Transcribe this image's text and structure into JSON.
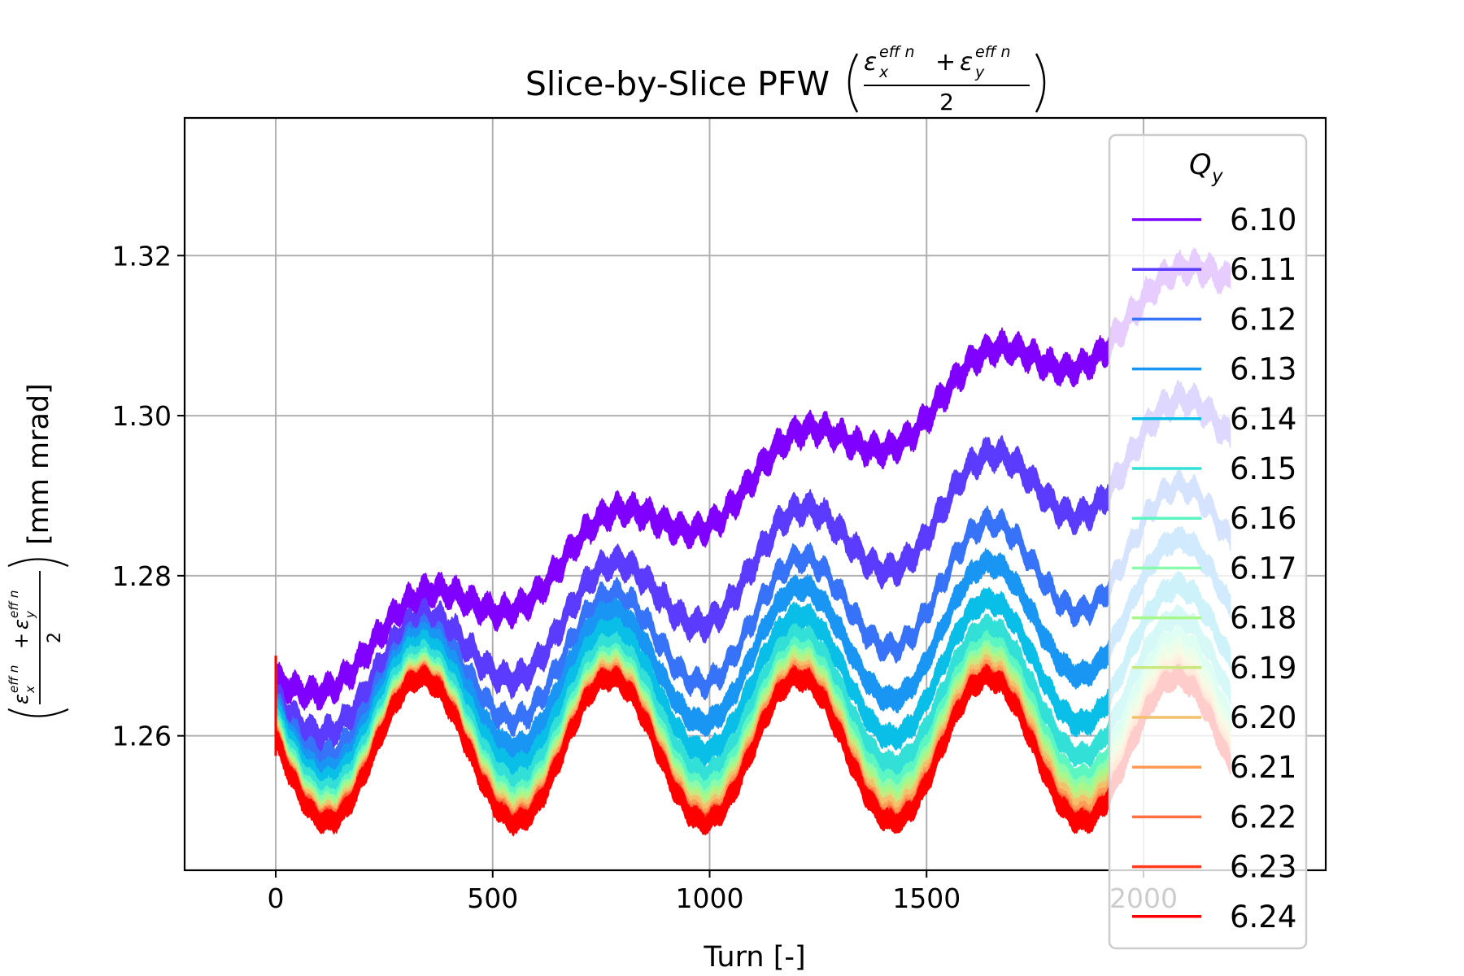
{
  "chart_data": {
    "type": "line",
    "title": "Slice-by-Slice PFW",
    "title_formula": {
      "numerator_x": "ε",
      "sub_x": "x",
      "sup_x": "eff n",
      "plus": "+",
      "numerator_y": "ε",
      "sub_y": "y",
      "sup_y": "eff n",
      "denominator": "2"
    },
    "xlabel": "Turn [-]",
    "ylabel_unit": "[mm mrad]",
    "xlim": [
      -210,
      2420
    ],
    "ylim": [
      1.2432,
      1.3372
    ],
    "x_ticks": [
      0,
      500,
      1000,
      1500,
      2000
    ],
    "x_tick_labels": [
      "0",
      "500",
      "1000",
      "1500",
      "2000"
    ],
    "y_ticks": [
      1.26,
      1.28,
      1.3,
      1.32
    ],
    "y_tick_labels": [
      "1.26",
      "1.28",
      "1.30",
      "1.32"
    ],
    "grid": true,
    "legend": {
      "title": "Q",
      "title_sub": "y",
      "placement": "right"
    },
    "x_end": 2200,
    "period": 435,
    "series": [
      {
        "name": "6.10",
        "color": "#8000ff",
        "start": 1.2665,
        "trend_per_period": 0.0101,
        "amplitude": 0.0035,
        "band": 0.0022
      },
      {
        "name": "6.11",
        "color": "#5b3bfd",
        "start": 1.264,
        "trend_per_period": 0.0068,
        "amplitude": 0.0055,
        "band": 0.0022
      },
      {
        "name": "6.12",
        "color": "#3673f8",
        "start": 1.263,
        "trend_per_period": 0.0045,
        "amplitude": 0.0067,
        "band": 0.0018
      },
      {
        "name": "6.13",
        "color": "#1996f3",
        "start": 1.2625,
        "trend_per_period": 0.003,
        "amplitude": 0.0077,
        "band": 0.002
      },
      {
        "name": "6.14",
        "color": "#09bfe7",
        "start": 1.262,
        "trend_per_period": 0.0018,
        "amplitude": 0.0081,
        "band": 0.002
      },
      {
        "name": "6.15",
        "color": "#32e0d8",
        "start": 1.2612,
        "trend_per_period": 0.0011,
        "amplitude": 0.0083,
        "band": 0.0018
      },
      {
        "name": "6.16",
        "color": "#5cf6c2",
        "start": 1.2605,
        "trend_per_period": 0.0007,
        "amplitude": 0.0085,
        "band": 0.0016
      },
      {
        "name": "6.17",
        "color": "#8afbad",
        "start": 1.26,
        "trend_per_period": 0.0005,
        "amplitude": 0.0086,
        "band": 0.0016
      },
      {
        "name": "6.18",
        "color": "#a6f88a",
        "start": 1.2597,
        "trend_per_period": 0.0004,
        "amplitude": 0.0087,
        "band": 0.0016
      },
      {
        "name": "6.19",
        "color": "#cae880",
        "start": 1.2594,
        "trend_per_period": 0.0003,
        "amplitude": 0.0088,
        "band": 0.0016
      },
      {
        "name": "6.20",
        "color": "#f3c06c",
        "start": 1.2591,
        "trend_per_period": 0.0002,
        "amplitude": 0.0088,
        "band": 0.0016
      },
      {
        "name": "6.21",
        "color": "#fd9a56",
        "start": 1.2588,
        "trend_per_period": 0.0001,
        "amplitude": 0.0089,
        "band": 0.0016
      },
      {
        "name": "6.22",
        "color": "#ff6e3f",
        "start": 1.2586,
        "trend_per_period": 0.0,
        "amplitude": 0.0089,
        "band": 0.0016
      },
      {
        "name": "6.23",
        "color": "#ff3a1e",
        "start": 1.2584,
        "trend_per_period": 0.0,
        "amplitude": 0.009,
        "band": 0.0016
      },
      {
        "name": "6.24",
        "color": "#ff0000",
        "start": 1.2582,
        "trend_per_period": 0.0,
        "amplitude": 0.009,
        "band": 0.0018
      }
    ]
  }
}
